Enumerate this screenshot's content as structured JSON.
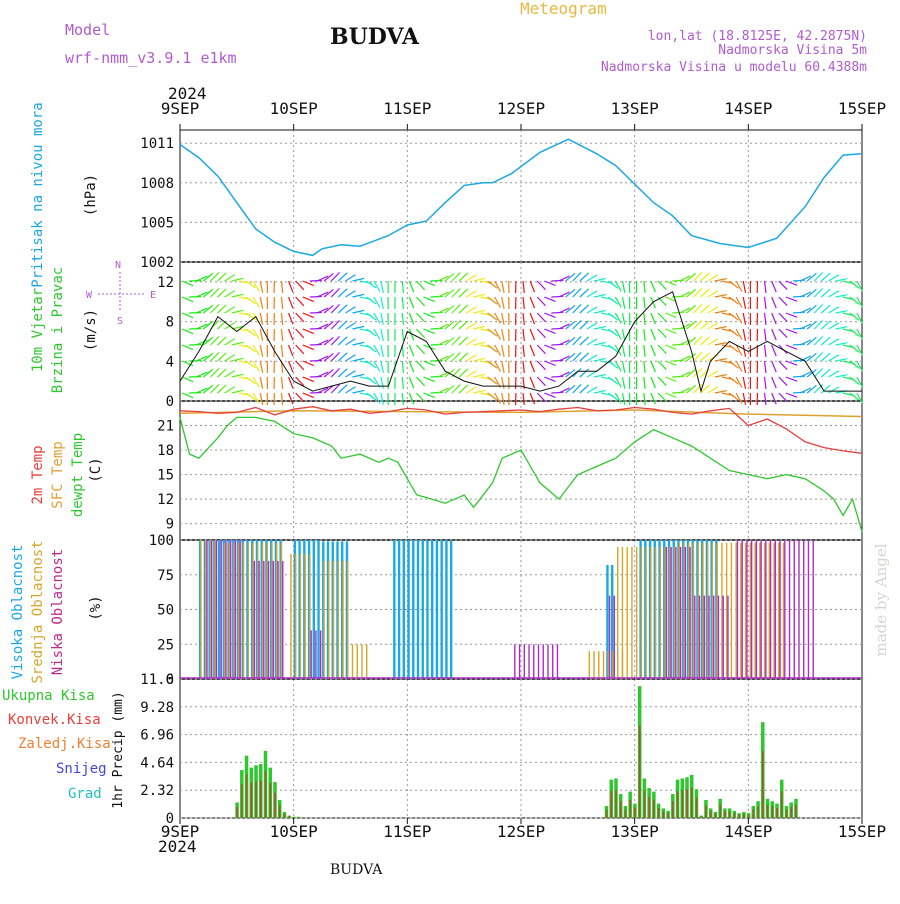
{
  "header": {
    "model_label": "Model",
    "model_name": "wrf-nmm_v3.9.1  e1km",
    "station": "BUDVA",
    "meteogram": "Meteogram",
    "lonlat": "lon,lat (18.8125E, 42.2875N)",
    "altitude": "Nadmorska Visina 5m",
    "model_altitude": "Nadmorska Visina u modelu 60.4388m",
    "signature": "made by Angel",
    "footer_station": "BUDVA"
  },
  "time_axis": {
    "year": "2024",
    "ticks": [
      "9SEP",
      "10SEP",
      "11SEP",
      "12SEP",
      "13SEP",
      "14SEP",
      "15SEP"
    ]
  },
  "colors": {
    "pressure": "#1ba8e4",
    "temp2m": "#e8403c",
    "sfc": "#e0a030",
    "dewpoint": "#2ec82e",
    "cloud_high": "#1ba8e4",
    "cloud_mid": "#d4a62a",
    "cloud_low": "#b02cc8",
    "precip_total": "#2ec82e",
    "precip_conv": "#e8403c",
    "precip_frozen": "#f08030",
    "precip_snow": "#4444dd",
    "precip_hail": "#22c0c0"
  },
  "panels": {
    "pressure": {
      "label": "Pritisak na nivou mora",
      "unit": "(hPa)",
      "ticks": [
        "1002",
        "1005",
        "1008",
        "1011"
      ]
    },
    "wind": {
      "label1": "10m Vjetar",
      "label2": "Brzina i Pravac",
      "unit": "(m/s)",
      "ticks": [
        "0",
        "4",
        "8",
        "12"
      ],
      "compass": {
        "n": "N",
        "s": "S",
        "e": "E",
        "w": "W"
      }
    },
    "temp": {
      "label_t2m": "2m Temp",
      "label_sfc": "SFC Temp",
      "label_dew": "dewpt Temp",
      "unit": "(C)",
      "ticks": [
        "9",
        "12",
        "15",
        "18",
        "21"
      ]
    },
    "cloud": {
      "label_high": "Visoka Oblacnost",
      "label_mid": "Srednja Oblacnost",
      "label_low": "Niska Oblacnost",
      "unit": "(%)",
      "ticks": [
        "0",
        "25",
        "50",
        "75",
        "100"
      ]
    },
    "precip": {
      "label_total": "Ukupna Kisa",
      "label_conv": "Konvek.Kisa",
      "label_frozen": "Zaledj.Kisa",
      "label_snow": "Snijeg",
      "label_hail": "Grad",
      "unit": "1hr Precip (mm)",
      "ticks": [
        "0",
        "2.32",
        "4.64",
        "6.96",
        "9.28",
        "11.6"
      ]
    }
  },
  "chart_data": [
    {
      "type": "line",
      "title": "Pritisak na nivou mora",
      "ylabel": "(hPa)",
      "xlim_hours": [
        0,
        144
      ],
      "ylim": [
        1002,
        1012
      ],
      "x_hours": [
        0,
        4,
        8,
        12,
        16,
        20,
        24,
        28,
        30,
        34,
        38,
        44,
        48,
        52,
        56,
        60,
        64,
        66,
        70,
        76,
        82,
        88,
        92,
        96,
        100,
        104,
        108,
        114,
        120,
        126,
        132,
        136,
        140,
        144
      ],
      "values": [
        1010.9,
        1009.9,
        1008.5,
        1006.5,
        1004.5,
        1003.5,
        1002.8,
        1002.5,
        1003.0,
        1003.3,
        1003.2,
        1004.0,
        1004.8,
        1005.1,
        1006.5,
        1007.8,
        1008.0,
        1008.0,
        1008.7,
        1010.3,
        1011.3,
        1010.2,
        1009.3,
        1007.9,
        1006.5,
        1005.5,
        1004.0,
        1003.4,
        1003.1,
        1003.8,
        1006.2,
        1008.4,
        1010.1,
        1010.2
      ]
    },
    {
      "type": "line",
      "title": "10m Vjetar Brzina i Pravac",
      "ylabel": "(m/s)",
      "xlim_hours": [
        0,
        144
      ],
      "ylim": [
        0,
        14
      ],
      "x_hours": [
        0,
        4,
        8,
        12,
        16,
        20,
        24,
        28,
        32,
        36,
        40,
        44,
        48,
        52,
        56,
        60,
        64,
        68,
        72,
        76,
        80,
        84,
        88,
        92,
        96,
        100,
        104,
        108,
        110,
        112,
        116,
        120,
        124,
        128,
        132,
        136,
        140,
        144
      ],
      "values": [
        2,
        5,
        8.5,
        7,
        8.5,
        5,
        2,
        1,
        1.5,
        2,
        1.5,
        1.5,
        7,
        6,
        3,
        2,
        1.5,
        1.5,
        1.5,
        1,
        1.5,
        3,
        3,
        4.5,
        8,
        10,
        11,
        5,
        1,
        4,
        6,
        5,
        6,
        5,
        4,
        1,
        1,
        1
      ]
    },
    {
      "type": "line",
      "title": "2m Temp / SFC Temp / dewpt Temp",
      "ylabel": "(C)",
      "xlim_hours": [
        0,
        144
      ],
      "ylim": [
        7,
        24
      ],
      "series": [
        {
          "name": "2m Temp",
          "x_hours": [
            0,
            4,
            8,
            12,
            16,
            20,
            24,
            28,
            32,
            36,
            40,
            44,
            48,
            52,
            56,
            60,
            64,
            68,
            72,
            76,
            80,
            84,
            88,
            92,
            96,
            100,
            104,
            108,
            112,
            116,
            120,
            124,
            128,
            132,
            136,
            140,
            144
          ],
          "values": [
            22.8,
            22.7,
            22.5,
            22.6,
            23.2,
            22.3,
            23.0,
            23.3,
            22.8,
            23.0,
            22.5,
            22.7,
            23.1,
            22.9,
            22.4,
            22.6,
            22.7,
            22.8,
            22.9,
            22.7,
            23.0,
            23.2,
            22.8,
            22.9,
            23.2,
            23.0,
            22.6,
            22.4,
            22.8,
            23.1,
            21.0,
            21.8,
            20.6,
            19.0,
            18.3,
            17.9,
            17.6
          ]
        },
        {
          "name": "SFC Temp",
          "x_hours": [
            0,
            24,
            48,
            72,
            96,
            120,
            144
          ],
          "values": [
            22.5,
            22.8,
            22.7,
            22.6,
            22.9,
            22.4,
            22.1
          ]
        },
        {
          "name": "dewpt Temp",
          "x_hours": [
            0,
            2,
            4,
            8,
            10,
            12,
            16,
            20,
            24,
            28,
            32,
            34,
            38,
            42,
            44,
            46,
            48,
            50,
            52,
            56,
            60,
            62,
            66,
            68,
            72,
            74,
            76,
            80,
            84,
            88,
            92,
            96,
            100,
            104,
            108,
            112,
            116,
            120,
            124,
            128,
            132,
            136,
            138,
            140,
            142,
            144
          ],
          "values": [
            22,
            17.5,
            17,
            19.5,
            21,
            22,
            22,
            21.5,
            20,
            19.5,
            18.5,
            17,
            17.5,
            16.5,
            17,
            16.5,
            14.5,
            12.5,
            12.2,
            11.5,
            12.5,
            11,
            14,
            17,
            18,
            16,
            14,
            12,
            15,
            16,
            17,
            19,
            20.5,
            19.5,
            18.5,
            17,
            15.5,
            15,
            14.5,
            15,
            14.5,
            13,
            12,
            10,
            12,
            8
          ]
        }
      ]
    },
    {
      "type": "bar",
      "title": "Visoka / Srednja / Niska Oblacnost",
      "ylabel": "(%)",
      "xlim_hours": [
        0,
        144
      ],
      "ylim": [
        0,
        100
      ],
      "series": [
        {
          "name": "Visoka Oblacnost",
          "segments": [
            [
              4,
              22,
              100
            ],
            [
              24,
              30,
              100
            ],
            [
              30,
              36,
              99
            ],
            [
              45,
              58,
              100
            ],
            [
              68,
              78,
              0
            ],
            [
              90,
              92,
              82
            ],
            [
              97,
              114,
              100
            ],
            [
              115,
              120,
              0
            ],
            [
              120,
              144,
              0
            ]
          ]
        },
        {
          "name": "Srednja Oblacnost",
          "segments": [
            [
              4,
              8,
              100
            ],
            [
              9,
              22,
              98
            ],
            [
              23,
              28,
              90
            ],
            [
              30,
              36,
              85
            ],
            [
              36,
              40,
              25
            ],
            [
              86,
              94,
              20
            ],
            [
              92,
              105,
              95
            ],
            [
              105,
              128,
              98
            ]
          ]
        },
        {
          "name": "Niska Oblacnost",
          "segments": [
            [
              5,
              13,
              100
            ],
            [
              15,
              22,
              85
            ],
            [
              27,
              30,
              35
            ],
            [
              70,
              80,
              25
            ],
            [
              90,
              92,
              60
            ],
            [
              102,
              108,
              95
            ],
            [
              108,
              116,
              60
            ],
            [
              117,
              134,
              100
            ]
          ]
        }
      ]
    },
    {
      "type": "bar",
      "title": "1hr Precip",
      "ylabel": "1hr Precip (mm)",
      "xlim_hours": [
        0,
        144
      ],
      "ylim": [
        0,
        11.6
      ],
      "x_hours": [
        12,
        13,
        14,
        15,
        16,
        17,
        18,
        19,
        20,
        21,
        22,
        23,
        24,
        25,
        90,
        91,
        92,
        93,
        94,
        95,
        96,
        97,
        98,
        99,
        100,
        101,
        102,
        103,
        104,
        105,
        106,
        107,
        108,
        109,
        110,
        111,
        112,
        113,
        114,
        115,
        116,
        117,
        118,
        119,
        120,
        121,
        122,
        123,
        124,
        125,
        126,
        127,
        128,
        129,
        130
      ],
      "values": [
        1.3,
        4.0,
        5.2,
        4.2,
        4.4,
        4.5,
        5.6,
        4.2,
        3.0,
        1.5,
        0.5,
        0.2,
        0.1,
        0.1,
        1.0,
        3.2,
        3.3,
        2.0,
        1.0,
        2.2,
        1.2,
        11.0,
        3.3,
        2.5,
        2.2,
        1.2,
        0.8,
        0.6,
        2.0,
        3.2,
        3.3,
        3.4,
        3.6,
        2.4,
        0.2,
        1.5,
        0.8,
        0.5,
        1.6,
        0.8,
        0.8,
        0.6,
        0.4,
        0.5,
        0.4,
        1.0,
        1.4,
        8.0,
        1.6,
        1.4,
        1.2,
        3.2,
        1.0,
        1.3,
        1.6
      ]
    }
  ]
}
